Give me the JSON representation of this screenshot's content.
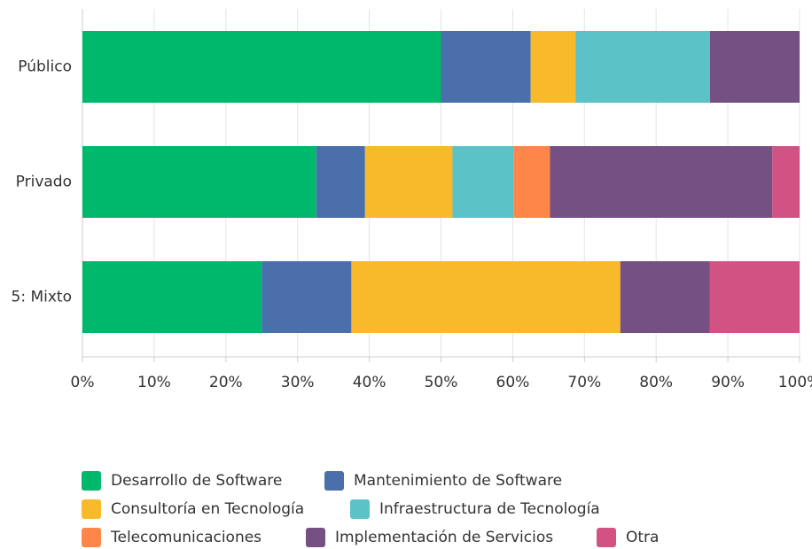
{
  "chart_data": {
    "type": "stacked_bar_horizontal",
    "categories": [
      "Público",
      "Privado",
      "5: Mixto"
    ],
    "series": [
      {
        "name": "Desarrollo de Software",
        "color": "#00b86b",
        "values": [
          50,
          32.6,
          25
        ]
      },
      {
        "name": "Mantenimiento de Software",
        "color": "#4a6fab",
        "values": [
          12.5,
          6.8,
          12.5
        ]
      },
      {
        "name": "Consultoría en Tecnología",
        "color": "#f8b92a",
        "values": [
          6.25,
          12.2,
          37.5
        ]
      },
      {
        "name": "Infraestructura de Tecnología",
        "color": "#5bc2c7",
        "values": [
          18.75,
          8.5,
          0
        ]
      },
      {
        "name": "Telecomunicaciones",
        "color": "#fe8649",
        "values": [
          0,
          5.1,
          0
        ]
      },
      {
        "name": "Implementación de Servicios",
        "color": "#745083",
        "values": [
          12.5,
          31.0,
          12.5
        ]
      },
      {
        "name": "Otra",
        "color": "#d25383",
        "values": [
          0,
          3.8,
          12.5
        ]
      }
    ],
    "xlim": [
      0,
      100
    ],
    "xticks": [
      {
        "value": 0,
        "label": "0%"
      },
      {
        "value": 10,
        "label": "10%"
      },
      {
        "value": 20,
        "label": "20%"
      },
      {
        "value": 30,
        "label": "30%"
      },
      {
        "value": 40,
        "label": "40%"
      },
      {
        "value": 50,
        "label": "50%"
      },
      {
        "value": 60,
        "label": "60%"
      },
      {
        "value": 70,
        "label": "70%"
      },
      {
        "value": 80,
        "label": "80%"
      },
      {
        "value": 90,
        "label": "90%"
      },
      {
        "value": 100,
        "label": "100%"
      }
    ],
    "grid": true
  }
}
